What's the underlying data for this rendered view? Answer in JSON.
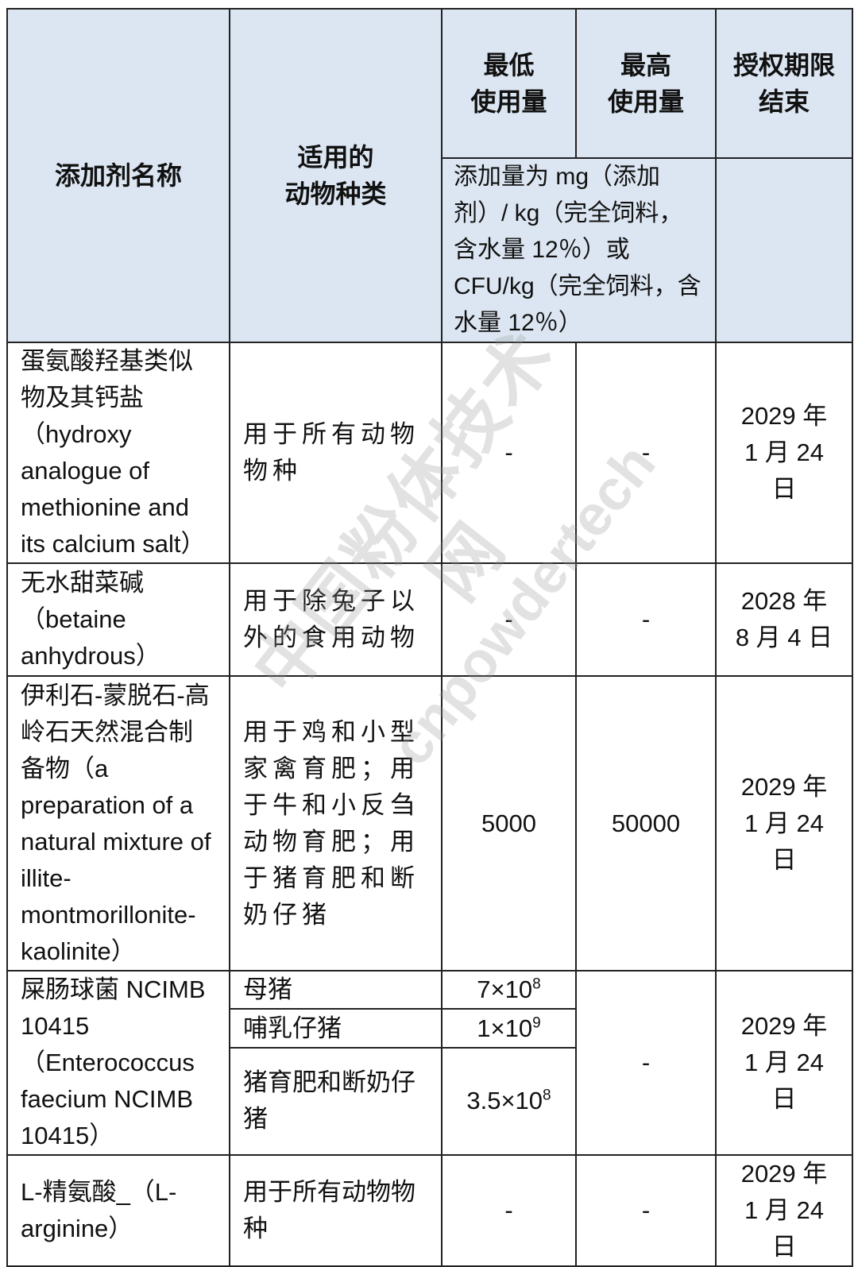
{
  "header": {
    "name": "添加剂名称",
    "species": "适用的\n动物种类",
    "min": "最低\n使用量",
    "max": "最高\n使用量",
    "expiry": "授权期限\n结束",
    "unit_note": "添加量为 mg（添加剂）/ kg（完全饲料，含水量 12％）或 CFU/kg（完全饲料，含水量 12％）"
  },
  "rows": [
    {
      "name": "蛋氨酸羟基类似物及其钙盐（hydroxy analogue of methionine and its calcium salt）",
      "species": "用于所有动物物种",
      "min": "-",
      "max": "-",
      "expiry": "2029 年\n1 月 24 日"
    },
    {
      "name": "无水甜菜碱（betaine anhydrous）",
      "species": "用于除兔子以外的食用动物",
      "min": "-",
      "max": "-",
      "expiry": "2028 年\n8 月 4 日"
    },
    {
      "name": "伊利石-蒙脱石-高岭石天然混合制备物（a preparation of a natural mixture of illite-montmorillonite-kaolinite）",
      "species": "用于鸡和小型家禽育肥；用于牛和小反刍动物育肥；用于猪育肥和断奶仔猪",
      "min": "5000",
      "max": "50000",
      "expiry": "2029 年\n1 月 24 日"
    },
    {
      "name": "屎肠球菌 NCIMB 10415（Enterococcus faecium NCIMB 10415）",
      "sub": [
        {
          "species": "母猪",
          "min_base": "7×10",
          "min_exp": "8"
        },
        {
          "species": "哺乳仔猪",
          "min_base": "1×10",
          "min_exp": "9"
        },
        {
          "species": "猪育肥和断奶仔猪",
          "min_base": "3.5×10",
          "min_exp": "8"
        }
      ],
      "max": "-",
      "expiry": "2029 年\n1 月 24 日"
    },
    {
      "name": "L-精氨酸_（L-arginine）",
      "species": "用于所有动物物种",
      "min": "-",
      "max": "-",
      "expiry": "2029 年\n1 月 24 日"
    }
  ],
  "watermark": {
    "line1": "中国粉体技术网",
    "line2": "cnpowdertech",
    "color": "#969696"
  },
  "colors": {
    "header_bg": "#dce6f2",
    "border": "#222222"
  }
}
